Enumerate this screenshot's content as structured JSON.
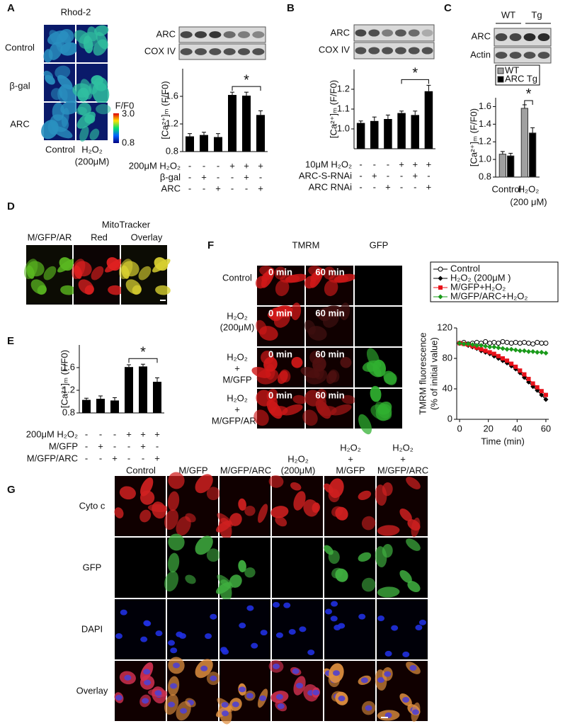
{
  "panel_labels": [
    "A",
    "B",
    "C",
    "D",
    "E",
    "F",
    "G"
  ],
  "panel_a": {
    "stain": "Rhod-2",
    "rows": [
      "Control",
      "β-gal",
      "ARC"
    ],
    "cols": [
      [
        "Control"
      ],
      [
        "H₂O₂",
        "(200μM)"
      ]
    ],
    "colorbar": {
      "title": "F/F0",
      "max": "3.0",
      "min": "0.8"
    },
    "blots": [
      "ARC",
      "COX IV"
    ]
  },
  "panel_b": {
    "blots": [
      "ARC",
      "COX IV"
    ]
  },
  "panel_c": {
    "groups": [
      "WT",
      "Tg"
    ],
    "blots": [
      "ARC",
      "Actin"
    ]
  },
  "panel_d": {
    "header": "MitoTracker",
    "cols": [
      "M/GFP/AR",
      "Red",
      "Overlay"
    ]
  },
  "panel_f": {
    "cols": [
      "TMRM",
      "GFP"
    ],
    "times": [
      "0 min",
      "60 min"
    ],
    "rows": [
      [
        "Control"
      ],
      [
        "H₂O₂",
        "(200μM)"
      ],
      [
        "H₂O₂",
        "+",
        "M/GFP"
      ],
      [
        "H₂O₂",
        "+",
        "M/GFP/ARC"
      ]
    ]
  },
  "panel_g": {
    "cols": [
      [
        "Control"
      ],
      [
        "M/GFP"
      ],
      [
        "M/GFP/ARC"
      ],
      [
        "H₂O₂",
        "(200μM)"
      ],
      [
        "H₂O₂",
        "+",
        "M/GFP"
      ],
      [
        "H₂O₂",
        "+",
        "M/GFP/ARC"
      ]
    ],
    "rows": [
      "Cyto c",
      "GFP",
      "DAPI",
      "Overlay"
    ]
  },
  "chart_data": [
    {
      "type": "bar",
      "ylabel": "[Ca²⁺]ₘ (F/F0)",
      "values": [
        1.02,
        1.04,
        1.01,
        1.62,
        1.61,
        1.33
      ],
      "errors": [
        0.04,
        0.04,
        0.05,
        0.04,
        0.05,
        0.06
      ],
      "color": "#000000",
      "ylim": [
        0.8,
        2.0
      ],
      "yticks": [
        0.8,
        1.2,
        1.6
      ],
      "significance": "*",
      "treatments": [
        {
          "name": "200μM H₂O₂",
          "signs": [
            "-",
            "-",
            "-",
            "+",
            "+",
            "+"
          ]
        },
        {
          "name": "β-gal",
          "signs": [
            "-",
            "+",
            "-",
            "-",
            "+",
            "-"
          ]
        },
        {
          "name": "ARC",
          "signs": [
            "-",
            "-",
            "+",
            "-",
            "-",
            "+"
          ]
        }
      ]
    },
    {
      "type": "bar",
      "ylabel": "[Ca²⁺]ₘ (F/F0)",
      "values": [
        1.03,
        1.04,
        1.05,
        1.08,
        1.07,
        1.19
      ],
      "errors": [
        0.01,
        0.02,
        0.02,
        0.01,
        0.02,
        0.03
      ],
      "color": "#000000",
      "ylim": [
        0.9,
        1.3
      ],
      "yticks": [
        {
          "value": 1,
          "label": "1.0"
        },
        1.1,
        1.2
      ],
      "significance": "*",
      "treatments": [
        {
          "name": "10μM H₂O₂",
          "signs": [
            "-",
            "-",
            "-",
            "+",
            "+",
            "+"
          ]
        },
        {
          "name": "ARC-S-RNAi",
          "signs": [
            "-",
            "+",
            "-",
            "-",
            "+",
            "-"
          ]
        },
        {
          "name": "ARC RNAi",
          "signs": [
            "-",
            "-",
            "+",
            "-",
            "-",
            "+"
          ]
        }
      ]
    },
    {
      "type": "bar",
      "ylabel": "[Ca²⁺]ₘ (F/F0)",
      "categories": [
        [
          "Control"
        ],
        [
          "H₂O₂",
          "(200 μM)"
        ]
      ],
      "series": [
        {
          "name": "WT",
          "color": "#a0a0a0",
          "values": [
            1.06,
            1.58
          ],
          "errors": [
            0.03,
            0.04
          ]
        },
        {
          "name": "ARC Tg",
          "color": "#000000",
          "values": [
            1.04,
            1.3
          ],
          "errors": [
            0.03,
            0.06
          ]
        }
      ],
      "ylim": [
        0.8,
        1.7
      ],
      "yticks": [
        0.8,
        {
          "value": 1,
          "label": "1.0"
        },
        1.2,
        1.4,
        1.6
      ],
      "significance": "*"
    },
    {
      "type": "bar",
      "ylabel": "[Ca²⁺]ₘ (F/F0)",
      "values": [
        1.03,
        1.05,
        1.02,
        1.61,
        1.62,
        1.35
      ],
      "errors": [
        0.03,
        0.05,
        0.05,
        0.04,
        0.04,
        0.07
      ],
      "color": "#000000",
      "ylim": [
        0.8,
        2.0
      ],
      "yticks": [
        0.8,
        1.2,
        1.6
      ],
      "significance": "*",
      "treatments": [
        {
          "name": "200μM H₂O₂",
          "signs": [
            "-",
            "-",
            "-",
            "+",
            "+",
            "+"
          ]
        },
        {
          "name": "M/GFP",
          "signs": [
            "-",
            "+",
            "-",
            "-",
            "+",
            "-"
          ]
        },
        {
          "name": "M/GFP/ARC",
          "signs": [
            "-",
            "-",
            "+",
            "-",
            "-",
            "+"
          ]
        }
      ]
    },
    {
      "type": "line",
      "xlabel": "Time (min)",
      "ylabel": [
        "TMRM fluorescence",
        "(% of initial value)"
      ],
      "x": [
        0,
        3,
        6,
        9,
        12,
        15,
        18,
        21,
        24,
        27,
        30,
        33,
        36,
        39,
        42,
        45,
        48,
        51,
        54,
        57,
        60
      ],
      "series": [
        {
          "name": "Control",
          "color": "#000000",
          "marker": "open-circle",
          "values": [
            100,
            101,
            99,
            100,
            101,
            100,
            102,
            100,
            101,
            100,
            102,
            101,
            100,
            101,
            100,
            101,
            100,
            99,
            101,
            100,
            100
          ]
        },
        {
          "name": "H₂O₂ (200μM )",
          "color": "#000000",
          "marker": "diamond",
          "values": [
            100,
            99,
            97,
            95,
            93,
            90,
            88,
            86,
            83,
            80,
            77,
            74,
            70,
            66,
            61,
            55,
            49,
            43,
            38,
            32,
            26
          ]
        },
        {
          "name": "M/GFP+H₂O₂",
          "color": "#e8121a",
          "marker": "square",
          "values": [
            100,
            99,
            98,
            96,
            94,
            92,
            90,
            88,
            86,
            83,
            80,
            77,
            73,
            69,
            64,
            59,
            53,
            47,
            42,
            37,
            32
          ]
        },
        {
          "name": "M/GFP/ARC+H₂O₂",
          "color": "#1a9a1a",
          "marker": "diamond",
          "values": [
            100,
            99,
            99,
            98,
            97,
            97,
            96,
            95,
            95,
            94,
            93,
            92,
            92,
            91,
            90,
            90,
            89,
            89,
            88,
            88,
            87
          ]
        }
      ],
      "xlim": [
        -2,
        62
      ],
      "xticks": [
        0,
        20,
        40,
        60
      ],
      "ylim": [
        0,
        120
      ],
      "yticks": [
        0,
        40,
        80,
        120
      ]
    }
  ]
}
